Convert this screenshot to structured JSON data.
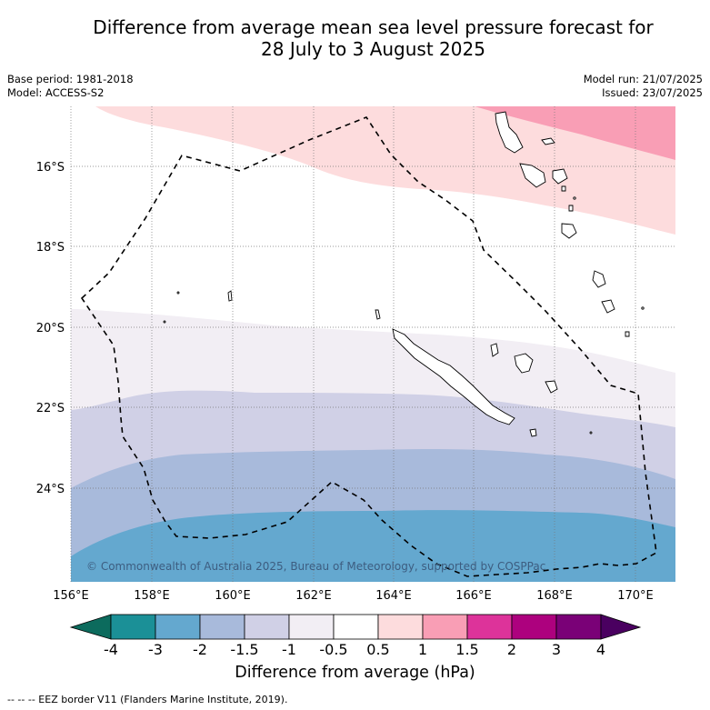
{
  "title": {
    "line1": "Difference from average mean sea level pressure forecast for",
    "line2": "28 July to 3 August 2025"
  },
  "meta": {
    "base_period": "Base period: 1981-2018",
    "model": "Model: ACCESS-S2",
    "model_run": "Model run: 21/07/2025",
    "issued": "Issued: 23/07/2025"
  },
  "map": {
    "lon_labels": [
      "156°E",
      "158°E",
      "160°E",
      "162°E",
      "164°E",
      "166°E",
      "168°E",
      "170°E"
    ],
    "lat_labels": [
      "16°S",
      "18°S",
      "20°S",
      "22°S",
      "24°S"
    ],
    "copyright": "© Commonwealth of Australia 2025, Bureau of Meteorology, supported by COSPPac",
    "eez_line_style": "dashed"
  },
  "colorbar": {
    "title": "Difference from average (hPa)",
    "tick_labels": [
      "-4",
      "-3",
      "-2",
      "-1.5",
      "-1",
      "-0.5",
      "0.5",
      "1",
      "1.5",
      "2",
      "3",
      "4"
    ],
    "colors": {
      "below_-4": "#0c6b5d",
      "-4_-3": "#1b9097",
      "-3_-2": "#64a8cf",
      "-2_-1.5": "#a8badb",
      "-1.5_-1": "#d0d0e6",
      "-1_-0.5": "#f2eef4",
      "-0.5_0.5": "#ffffff",
      "0.5_1": "#fddcdd",
      "1_1.5": "#f99eb5",
      "1.5_2": "#dd339a",
      "2_3": "#ad017e",
      "3_4": "#7a0177",
      "above_4": "#4a0060"
    }
  },
  "footer": "--  --  -- EEZ border V11 (Flanders Marine Institute, 2019)."
}
